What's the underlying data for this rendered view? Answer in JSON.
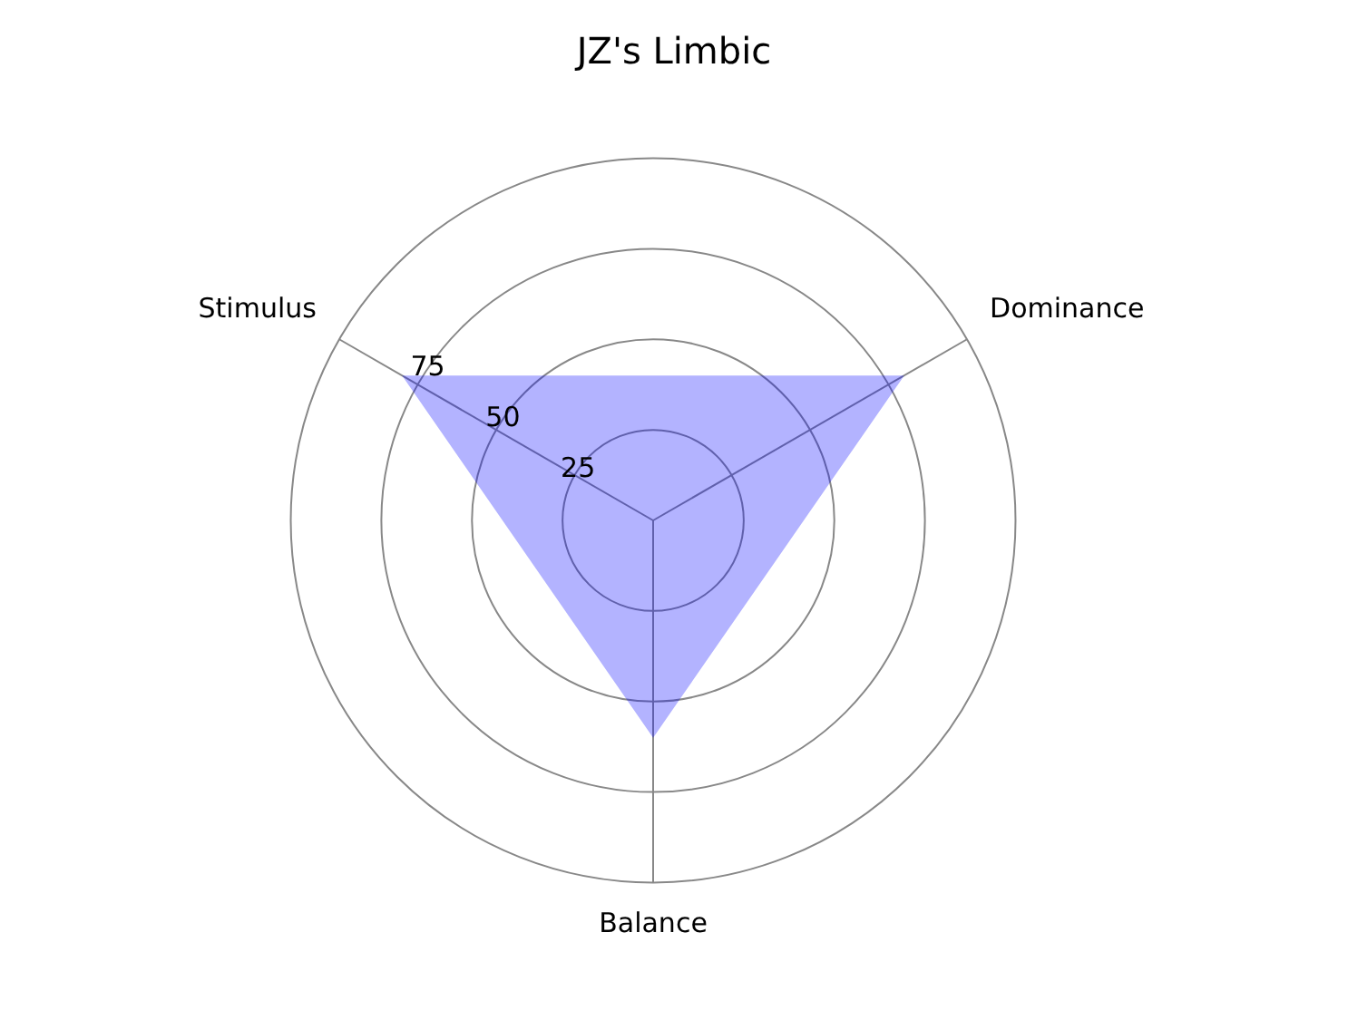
{
  "chart_data": {
    "type": "radar",
    "title": "JZ's Limbic",
    "categories": [
      "Dominance",
      "Balance",
      "Stimulus"
    ],
    "series": [
      {
        "color": "#b3b3ff",
        "values": [
          80,
          60,
          80
        ]
      }
    ],
    "ylim": [
      0,
      100
    ],
    "yticks": [
      25,
      50,
      75
    ],
    "grid": true,
    "legend": false,
    "marker": "none"
  }
}
